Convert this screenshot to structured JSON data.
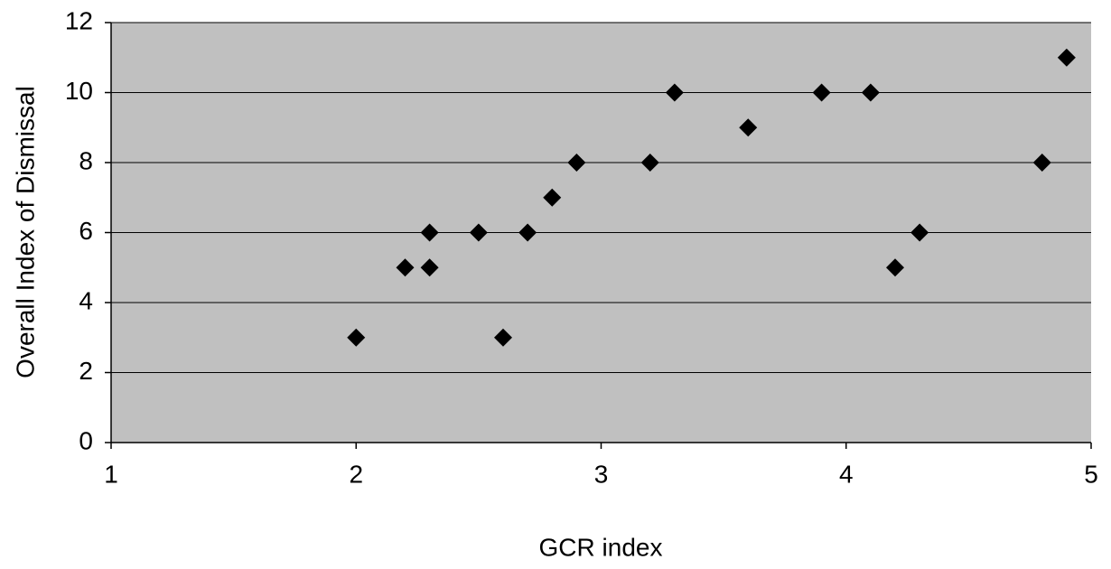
{
  "chart_data": {
    "type": "scatter",
    "x_label": "GCR index",
    "y_label": "Overall Index of Dismissal",
    "x": [
      2,
      2.2,
      2.3,
      2.3,
      2.5,
      2.6,
      2.7,
      2.8,
      2.9,
      3.2,
      3.3,
      3.6,
      3.9,
      4.1,
      4.2,
      4.3,
      4.8,
      4.9
    ],
    "values": [
      3,
      5,
      5,
      6,
      6,
      3,
      6,
      7,
      8,
      8,
      10,
      9,
      10,
      10,
      5,
      6,
      8,
      11
    ],
    "color": "#000000",
    "background": "#c0c0c0",
    "xlim": [
      1,
      5
    ],
    "xticks": [
      1,
      2,
      3,
      4,
      5
    ],
    "ylim": [
      0,
      12
    ],
    "yticks": [
      0,
      2,
      4,
      6,
      8,
      10,
      12
    ],
    "grid": true
  }
}
